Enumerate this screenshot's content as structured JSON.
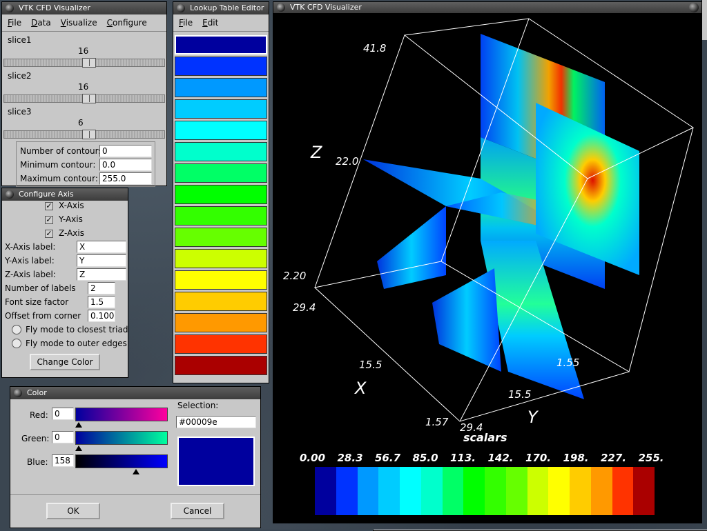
{
  "main_window": {
    "title": "VTK CFD Visualizer",
    "menu": [
      "File",
      "Data",
      "Visualize",
      "Configure"
    ],
    "slices": [
      {
        "label": "slice1",
        "value": "16",
        "fraction": 0.53
      },
      {
        "label": "slice2",
        "value": "16",
        "fraction": 0.53
      },
      {
        "label": "slice3",
        "value": "6",
        "fraction": 0.53
      }
    ],
    "contours": [
      {
        "label": "Number of contours:",
        "value": "0"
      },
      {
        "label": "Minimum contour:",
        "value": "0.0"
      },
      {
        "label": "Maximum contour:",
        "value": "255.0"
      }
    ]
  },
  "lookup_table": {
    "title": "Lookup Table Editor",
    "menu": [
      "File",
      "Edit"
    ],
    "colors": [
      "#00009e",
      "#0033ff",
      "#0099ff",
      "#00ccff",
      "#00ffff",
      "#00ffcc",
      "#00ff66",
      "#00ff00",
      "#33ff00",
      "#66ff00",
      "#ccff00",
      "#ffff00",
      "#ffcc00",
      "#ff9900",
      "#ff3300",
      "#aa0000"
    ]
  },
  "configure_axis": {
    "title": "Configure Axis",
    "checks": [
      {
        "label": "X-Axis",
        "checked": true
      },
      {
        "label": "Y-Axis",
        "checked": true
      },
      {
        "label": "Z-Axis",
        "checked": true
      }
    ],
    "fields": [
      {
        "label": "X-Axis label:",
        "value": "X"
      },
      {
        "label": "Y-Axis label:",
        "value": "Y"
      },
      {
        "label": "Z-Axis label:",
        "value": "Z"
      }
    ],
    "small_fields": [
      {
        "label": "Number of labels",
        "value": "2"
      },
      {
        "label": "Font size factor",
        "value": "1.5"
      },
      {
        "label": "Offset from corner",
        "value": "0.1000"
      }
    ],
    "radios": [
      "Fly mode to closest triad",
      "Fly mode to outer edges"
    ],
    "change_color": "Change Color"
  },
  "color_dialog": {
    "title": "Color",
    "channels": [
      {
        "label": "Red:",
        "value": "0",
        "fraction": 0.0
      },
      {
        "label": "Green:",
        "value": "0",
        "fraction": 0.0
      },
      {
        "label": "Blue:",
        "value": "158",
        "fraction": 0.62
      }
    ],
    "selection_label": "Selection:",
    "selection_value": "#00009e",
    "preview_color": "#00009e",
    "ok": "OK",
    "cancel": "Cancel"
  },
  "viewer": {
    "title": "VTK CFD Visualizer",
    "axis_names": {
      "x": "X",
      "y": "Y",
      "z": "Z"
    },
    "z_ticks": [
      "41.8",
      "22.0",
      "2.20"
    ],
    "x_ticks": [
      "29.4",
      "15.5",
      "1.57"
    ],
    "y_ticks": [
      "29.4",
      "15.5",
      "1.55"
    ],
    "scalar_bar_title": "scalars",
    "scalar_ticks": [
      "0.00",
      "28.3",
      "56.7",
      "85.0",
      "113.",
      "142.",
      "170.",
      "198.",
      "227.",
      "255."
    ],
    "scalar_colors": [
      "#00009e",
      "#0033ff",
      "#0099ff",
      "#00ccff",
      "#00ffff",
      "#00ffcc",
      "#00ff66",
      "#00ff00",
      "#33ff00",
      "#66ff00",
      "#ccff00",
      "#ffff00",
      "#ffcc00",
      "#ff9900",
      "#ff3300",
      "#aa0000"
    ]
  }
}
